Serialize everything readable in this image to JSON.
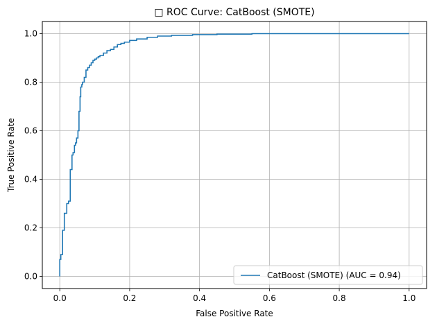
{
  "chart_data": {
    "type": "line",
    "title": "□ ROC Curve: CatBoost (SMOTE)",
    "xlabel": "False Positive Rate",
    "ylabel": "True Positive Rate",
    "xlim": [
      -0.05,
      1.05
    ],
    "ylim": [
      -0.05,
      1.05
    ],
    "xticks": [
      0.0,
      0.2,
      0.4,
      0.6,
      0.8,
      1.0
    ],
    "yticks": [
      0.0,
      0.2,
      0.4,
      0.6,
      0.8,
      1.0
    ],
    "xtick_labels": [
      "0.0",
      "0.2",
      "0.4",
      "0.6",
      "0.8",
      "1.0"
    ],
    "ytick_labels": [
      "0.0",
      "0.2",
      "0.4",
      "0.6",
      "0.8",
      "1.0"
    ],
    "grid": true,
    "legend_position": "lower-right",
    "series": [
      {
        "name": "CatBoost (SMOTE) (AUC = 0.94)",
        "color": "#1f77b4",
        "x": [
          0.0,
          0.0,
          0.003,
          0.003,
          0.008,
          0.008,
          0.013,
          0.013,
          0.02,
          0.02,
          0.025,
          0.025,
          0.03,
          0.03,
          0.035,
          0.035,
          0.038,
          0.038,
          0.042,
          0.042,
          0.045,
          0.045,
          0.048,
          0.048,
          0.052,
          0.052,
          0.055,
          0.055,
          0.058,
          0.058,
          0.06,
          0.06,
          0.063,
          0.063,
          0.065,
          0.065,
          0.07,
          0.07,
          0.075,
          0.075,
          0.08,
          0.08,
          0.085,
          0.085,
          0.09,
          0.09,
          0.095,
          0.095,
          0.1,
          0.1,
          0.105,
          0.105,
          0.11,
          0.11,
          0.115,
          0.115,
          0.125,
          0.125,
          0.135,
          0.135,
          0.145,
          0.145,
          0.155,
          0.155,
          0.165,
          0.165,
          0.175,
          0.175,
          0.185,
          0.185,
          0.2,
          0.2,
          0.22,
          0.22,
          0.25,
          0.25,
          0.28,
          0.28,
          0.32,
          0.32,
          0.38,
          0.38,
          0.45,
          0.45,
          0.55,
          0.55,
          1.0
        ],
        "y": [
          0.0,
          0.07,
          0.07,
          0.09,
          0.09,
          0.19,
          0.19,
          0.26,
          0.26,
          0.3,
          0.3,
          0.31,
          0.31,
          0.44,
          0.44,
          0.5,
          0.5,
          0.51,
          0.51,
          0.54,
          0.54,
          0.55,
          0.55,
          0.57,
          0.57,
          0.6,
          0.6,
          0.68,
          0.68,
          0.74,
          0.74,
          0.78,
          0.78,
          0.79,
          0.79,
          0.8,
          0.8,
          0.82,
          0.82,
          0.85,
          0.85,
          0.86,
          0.86,
          0.87,
          0.87,
          0.88,
          0.88,
          0.89,
          0.89,
          0.895,
          0.895,
          0.9,
          0.9,
          0.905,
          0.905,
          0.91,
          0.91,
          0.92,
          0.92,
          0.93,
          0.93,
          0.935,
          0.935,
          0.945,
          0.945,
          0.955,
          0.955,
          0.96,
          0.96,
          0.965,
          0.965,
          0.972,
          0.972,
          0.978,
          0.978,
          0.985,
          0.985,
          0.99,
          0.99,
          0.993,
          0.993,
          0.996,
          0.996,
          0.998,
          0.998,
          1.0,
          1.0
        ]
      }
    ]
  }
}
